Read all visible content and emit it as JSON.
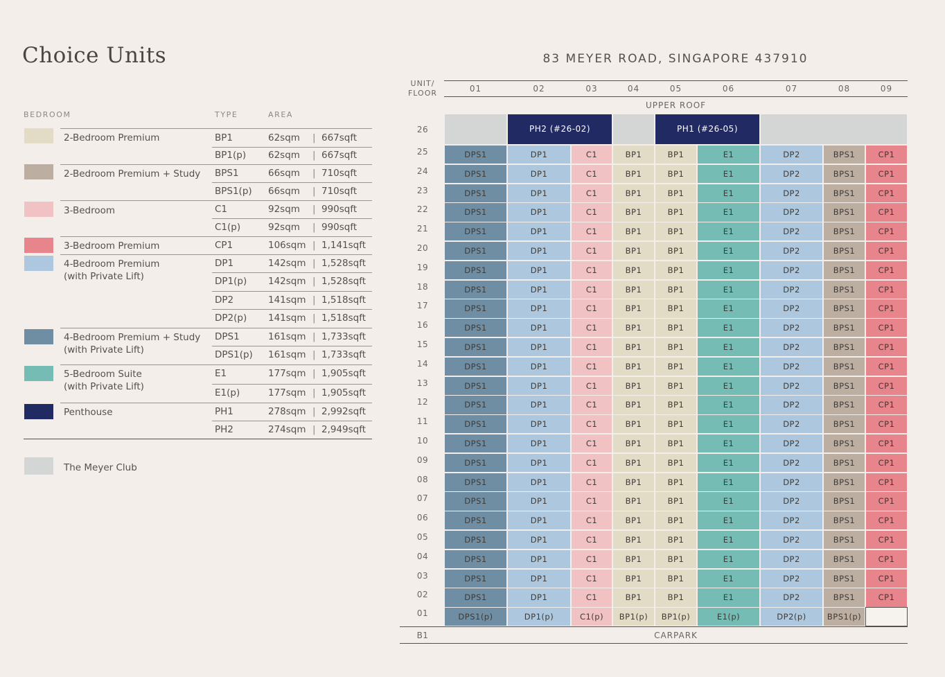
{
  "page_title": "Choice Units",
  "address": "83 MEYER ROAD, SINGAPORE 437910",
  "colors": {
    "BP": "#e2dbc6",
    "BPS": "#bcaea0",
    "C": "#f0c2c4",
    "CP": "#e8848c",
    "DP": "#adc8de",
    "DPS": "#6f8ea3",
    "E": "#75bcb4",
    "PH": "#222a63",
    "CLUB": "#d4d6d6",
    "EMPTY": "#f6f2ee"
  },
  "legend": {
    "headers": {
      "bedroom": "BEDROOM",
      "type": "TYPE",
      "area": "AREA"
    },
    "groups": [
      {
        "color": "BP",
        "name_lines": [
          "2-Bedroom Premium"
        ]
      },
      {
        "color": "BPS",
        "name_lines": [
          "2-Bedroom Premium + Study"
        ]
      },
      {
        "color": "C",
        "name_lines": [
          "3-Bedroom"
        ]
      },
      {
        "color": "CP",
        "name_lines": [
          "3-Bedroom Premium"
        ]
      },
      {
        "color": "DP",
        "name_lines": [
          "4-Bedroom Premium",
          "(with Private Lift)"
        ]
      },
      {
        "color": "DPS",
        "name_lines": [
          "4-Bedroom Premium + Study",
          "(with Private Lift)"
        ]
      },
      {
        "color": "E",
        "name_lines": [
          "5-Bedroom Suite",
          "(with Private Lift)"
        ]
      },
      {
        "color": "PH",
        "name_lines": [
          "Penthouse"
        ]
      }
    ],
    "rows": [
      {
        "type": "BP1",
        "sqm": "62sqm",
        "sqft": "667sqft"
      },
      {
        "type": "BP1(p)",
        "sqm": "62sqm",
        "sqft": "667sqft"
      },
      {
        "type": "BPS1",
        "sqm": "66sqm",
        "sqft": "710sqft"
      },
      {
        "type": "BPS1(p)",
        "sqm": "66sqm",
        "sqft": "710sqft"
      },
      {
        "type": "C1",
        "sqm": "92sqm",
        "sqft": "990sqft"
      },
      {
        "type": "C1(p)",
        "sqm": "92sqm",
        "sqft": "990sqft"
      },
      {
        "type": "CP1",
        "sqm": "106sqm",
        "sqft": "1,141sqft"
      },
      {
        "type": "DP1",
        "sqm": "142sqm",
        "sqft": "1,528sqft"
      },
      {
        "type": "DP1(p)",
        "sqm": "142sqm",
        "sqft": "1,528sqft"
      },
      {
        "type": "DP2",
        "sqm": "141sqm",
        "sqft": "1,518sqft"
      },
      {
        "type": "DP2(p)",
        "sqm": "141sqm",
        "sqft": "1,518sqft"
      },
      {
        "type": "DPS1",
        "sqm": "161sqm",
        "sqft": "1,733sqft"
      },
      {
        "type": "DPS1(p)",
        "sqm": "161sqm",
        "sqft": "1,733sqft"
      },
      {
        "type": "E1",
        "sqm": "177sqm",
        "sqft": "1,905sqft"
      },
      {
        "type": "E1(p)",
        "sqm": "177sqm",
        "sqft": "1,905sqft"
      },
      {
        "type": "PH1",
        "sqm": "278sqm",
        "sqft": "2,992sqft"
      },
      {
        "type": "PH2",
        "sqm": "274sqm",
        "sqft": "2,949sqft"
      }
    ],
    "separator": "|",
    "club": {
      "color": "CLUB",
      "name": "The Meyer Club"
    }
  },
  "grid": {
    "corner_label": [
      "UNIT/",
      "FLOOR"
    ],
    "units": [
      "01",
      "02",
      "03",
      "04",
      "05",
      "06",
      "07",
      "08",
      "09"
    ],
    "upper_roof": "UPPER ROOF",
    "carpark_floor": "B1",
    "carpark": "CARPARK",
    "floor_26": {
      "label": "26",
      "blocks": [
        {
          "units": 1,
          "text": "",
          "color": "CLUB"
        },
        {
          "units": 2,
          "text": "PH2 (#26-02)",
          "color": "PH"
        },
        {
          "units": 1,
          "text": "",
          "color": "CLUB"
        },
        {
          "units": 2,
          "text": "PH1 (#26-05)",
          "color": "PH"
        },
        {
          "units": 3,
          "text": "",
          "color": "CLUB"
        }
      ]
    },
    "typical_floors": [
      "25",
      "24",
      "23",
      "22",
      "21",
      "20",
      "19",
      "18",
      "17",
      "16",
      "15",
      "14",
      "13",
      "12",
      "11",
      "10",
      "09",
      "08",
      "07",
      "06",
      "05",
      "04",
      "03",
      "02"
    ],
    "typical_units": [
      "DPS1",
      "DP1",
      "C1",
      "BP1",
      "BP1",
      "E1",
      "DP2",
      "BPS1",
      "CP1"
    ],
    "typical_colors": [
      "DPS",
      "DP",
      "C",
      "BP",
      "BP",
      "E",
      "DP",
      "BPS",
      "CP"
    ],
    "floor_01": {
      "label": "01",
      "units": [
        "DPS1(p)",
        "DP1(p)",
        "C1(p)",
        "BP1(p)",
        "BP1(p)",
        "E1(p)",
        "DP2(p)",
        "BPS1(p)",
        ""
      ],
      "colors": [
        "DPS",
        "DP",
        "C",
        "BP",
        "BP",
        "E",
        "DP",
        "BPS",
        "EMPTY"
      ]
    }
  }
}
